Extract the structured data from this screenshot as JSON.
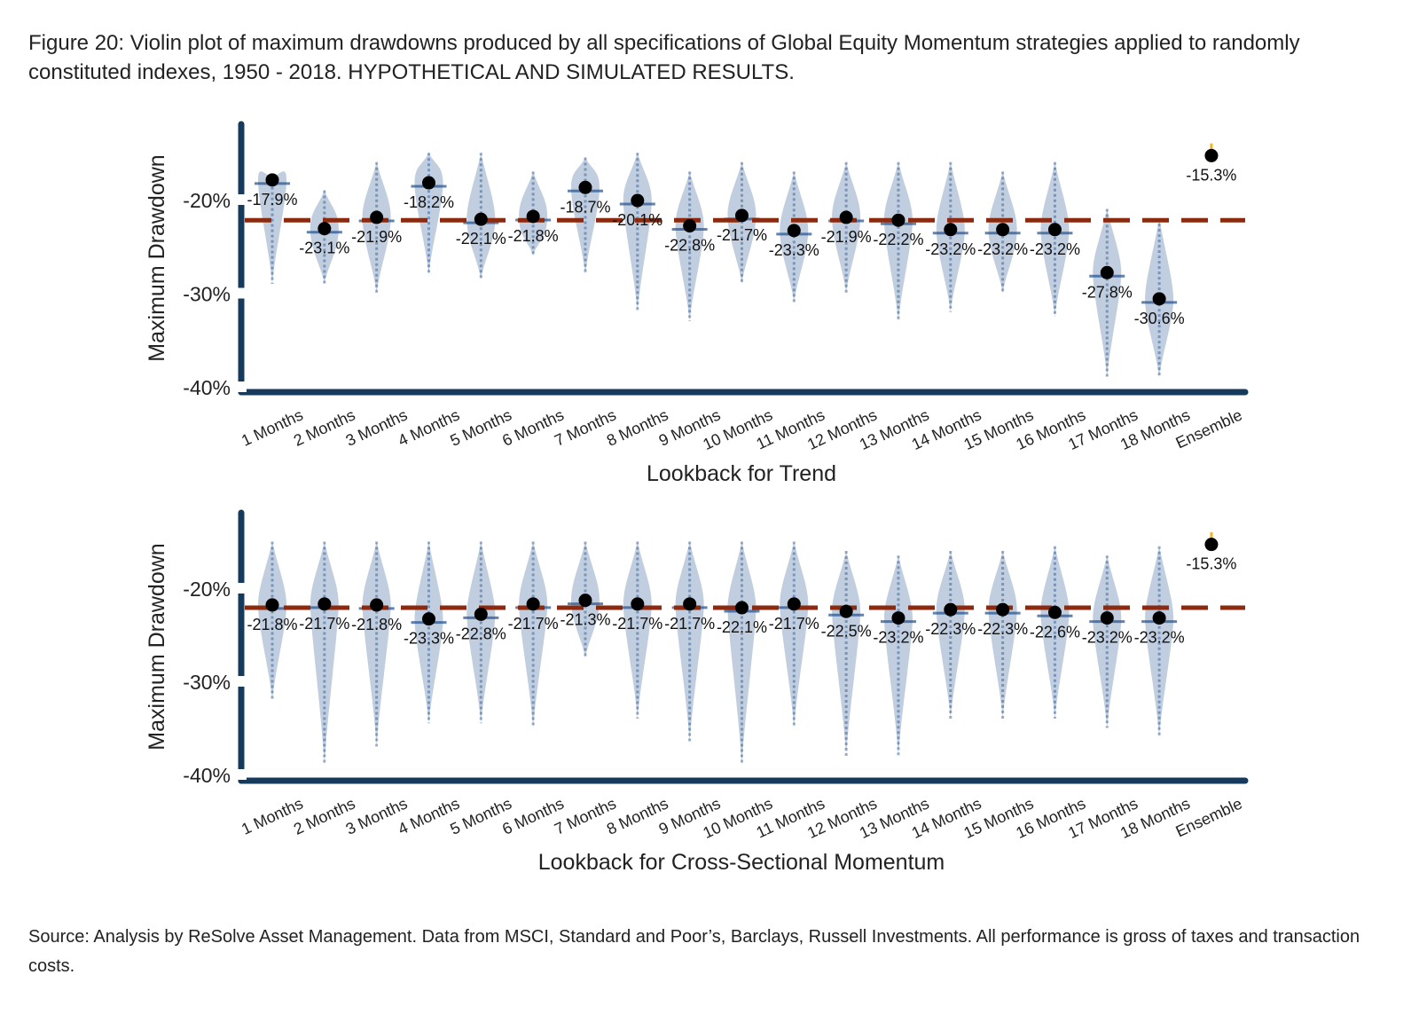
{
  "caption": "Figure 20: Violin plot of maximum drawdowns produced by all specifications of Global Equity Momentum strategies applied to randomly constituted indexes, 1950 - 2018. HYPOTHETICAL AND SIMULATED RESULTS.",
  "source": "Source: Analysis by ReSolve Asset Management. Data from MSCI, Standard and Poor’s, Barclays, Russell Investments. All performance is gross of taxes and transaction costs.",
  "colors": {
    "violin": "#1f4e8c",
    "axis": "#163a5c",
    "reference_line": "#8b2a0e",
    "ensemble": "#f0b429",
    "median": "#000000"
  },
  "chart_data": [
    {
      "type": "violin",
      "xlabel": "Lookback for Trend",
      "ylabel": "Maximum Drawdown",
      "ylim": [
        -40,
        -13
      ],
      "yticks": [
        -20,
        -30,
        -40
      ],
      "ytick_labels": [
        "-20%",
        "-30%",
        "-40%"
      ],
      "categories": [
        "1 Months",
        "2 Months",
        "3 Months",
        "4 Months",
        "5 Months",
        "6 Months",
        "7 Months",
        "8 Months",
        "9 Months",
        "10 Months",
        "11 Months",
        "12 Months",
        "13 Months",
        "14 Months",
        "15 Months",
        "16 Months",
        "17 Months",
        "18 Months",
        "Ensemble"
      ],
      "medians": [
        -17.9,
        -23.1,
        -21.9,
        -18.2,
        -22.1,
        -21.8,
        -18.7,
        -20.1,
        -22.8,
        -21.7,
        -23.3,
        -21.9,
        -22.2,
        -23.2,
        -23.2,
        -23.2,
        -27.8,
        -30.6,
        -15.3
      ],
      "median_labels": [
        "-17.9%",
        "-23.1%",
        "-21.9%",
        "-18.2%",
        "-22.1%",
        "-21.8%",
        "-18.7%",
        "-20.1%",
        "-22.8%",
        "-21.7%",
        "-23.3%",
        "-21.9%",
        "-22.2%",
        "-23.2%",
        "-23.2%",
        "-23.2%",
        "-27.8%",
        "-30.6%",
        "-15.3%"
      ],
      "ranges": [
        [
          -17.5,
          -29
        ],
        [
          -19,
          -29
        ],
        [
          -16,
          -30
        ],
        [
          -15,
          -28
        ],
        [
          -15,
          -28.5
        ],
        [
          -17,
          -26
        ],
        [
          -15.5,
          -28
        ],
        [
          -15,
          -32
        ],
        [
          -17,
          -33
        ],
        [
          -16,
          -29
        ],
        [
          -17,
          -31
        ],
        [
          -16,
          -30
        ],
        [
          -16,
          -33
        ],
        [
          -16,
          -32
        ],
        [
          -17,
          -30
        ],
        [
          -16,
          -32.5
        ],
        [
          -21,
          -39
        ],
        [
          -22,
          -39
        ],
        [
          -14,
          -16
        ]
      ],
      "reference_line": -22.2
    },
    {
      "type": "violin",
      "xlabel": "Lookback for Cross-Sectional Momentum",
      "ylabel": "Maximum Drawdown",
      "ylim": [
        -40,
        -13
      ],
      "yticks": [
        -20,
        -30,
        -40
      ],
      "ytick_labels": [
        "-20%",
        "-30%",
        "-40%"
      ],
      "categories": [
        "1 Months",
        "2 Months",
        "3 Months",
        "4 Months",
        "5 Months",
        "6 Months",
        "7 Months",
        "8 Months",
        "9 Months",
        "10 Months",
        "11 Months",
        "12 Months",
        "13 Months",
        "14 Months",
        "15 Months",
        "16 Months",
        "17 Months",
        "18 Months",
        "Ensemble"
      ],
      "medians": [
        -21.8,
        -21.7,
        -21.8,
        -23.3,
        -22.8,
        -21.7,
        -21.3,
        -21.7,
        -21.7,
        -22.1,
        -21.7,
        -22.5,
        -23.2,
        -22.3,
        -22.3,
        -22.6,
        -23.2,
        -23.2,
        -15.3
      ],
      "median_labels": [
        "-21.8%",
        "-21.7%",
        "-21.8%",
        "-23.3%",
        "-22.8%",
        "-21.7%",
        "-21.3%",
        "-21.7%",
        "-21.7%",
        "-22.1%",
        "-21.7%",
        "-22.5%",
        "-23.2%",
        "-22.3%",
        "-22.3%",
        "-22.6%",
        "-23.2%",
        "-23.2%",
        "-15.3%"
      ],
      "ranges": [
        [
          -15,
          -32
        ],
        [
          -15,
          -39
        ],
        [
          -15,
          -37
        ],
        [
          -15,
          -34.5
        ],
        [
          -15,
          -34.5
        ],
        [
          -15,
          -35
        ],
        [
          -15,
          -27.5
        ],
        [
          -15,
          -34
        ],
        [
          -15,
          -36.5
        ],
        [
          -15,
          -39
        ],
        [
          -15,
          -35
        ],
        [
          -16,
          -38
        ],
        [
          -16.5,
          -38
        ],
        [
          -16,
          -34
        ],
        [
          -16,
          -34
        ],
        [
          -15.5,
          -34
        ],
        [
          -16.5,
          -35
        ],
        [
          -15.5,
          -36
        ],
        [
          -14,
          -16
        ]
      ],
      "reference_line": -22.1
    }
  ]
}
